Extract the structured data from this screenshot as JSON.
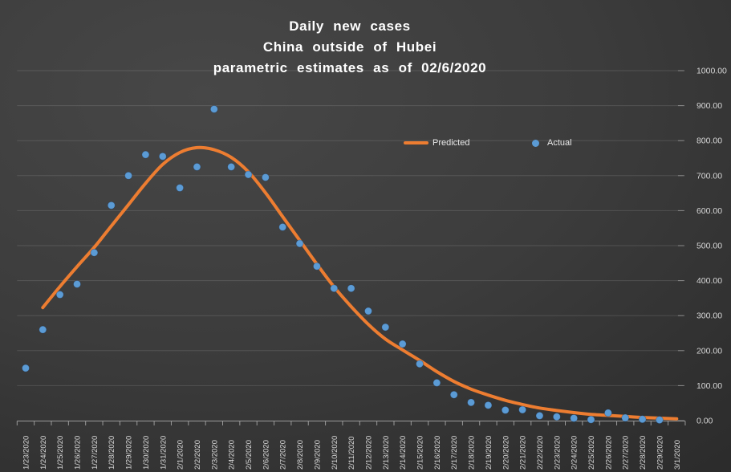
{
  "title": {
    "line1": "Daily new cases",
    "line2": "China outside of Hubei",
    "line3": "parametric estimates as of 02/6/2020"
  },
  "legend": {
    "predicted_label": "Predicted",
    "actual_label": "Actual"
  },
  "colors": {
    "predicted": "#ED7D31",
    "actual": "#5B9BD5",
    "grid": "rgba(255,255,255,0.13)",
    "axis": "#9a9a9a",
    "tick_label": "#d6d6d6",
    "title_text": "#ffffff",
    "legend_text": "#e9e9e9",
    "background_center": "#474747",
    "background_edge": "#232323"
  },
  "y_axis": {
    "min": 0,
    "max": 1000,
    "step": 100,
    "decimals": 2,
    "side": "right"
  },
  "chart_data": {
    "type": "line",
    "title": "Daily new cases\nChina outside of Hubei\nparametric estimates as of 02/6/2020",
    "xlabel": "",
    "ylabel": "",
    "ylim": [
      0,
      1000
    ],
    "grid": true,
    "legend_position": "top-center",
    "categories": [
      "1/23/2020",
      "1/24/2020",
      "1/25/2020",
      "1/26/2020",
      "1/27/2020",
      "1/28/2020",
      "1/29/2020",
      "1/30/2020",
      "1/31/2020",
      "2/1/2020",
      "2/2/2020",
      "2/3/2020",
      "2/4/2020",
      "2/5/2020",
      "2/6/2020",
      "2/7/2020",
      "2/8/2020",
      "2/9/2020",
      "2/10/2020",
      "2/11/2020",
      "2/12/2020",
      "2/13/2020",
      "2/14/2020",
      "2/15/2020",
      "2/16/2020",
      "2/17/2020",
      "2/18/2020",
      "2/19/2020",
      "2/20/2020",
      "2/21/2020",
      "2/22/2020",
      "2/23/2020",
      "2/24/2020",
      "2/25/2020",
      "2/26/2020",
      "2/27/2020",
      "2/28/2020",
      "2/29/2020",
      "3/1/2020"
    ],
    "series": [
      {
        "name": "Predicted",
        "render": "smooth-line",
        "color": "#ED7D31",
        "line_width": 4,
        "values": [
          null,
          323,
          383,
          440,
          495,
          556,
          617,
          678,
          732,
          766,
          780,
          774,
          752,
          711,
          651,
          583,
          515,
          447,
          382,
          326,
          275,
          233,
          202,
          172,
          140,
          112,
          90,
          73,
          58,
          46,
          36,
          29,
          23,
          18,
          15,
          12,
          9,
          7,
          5
        ]
      },
      {
        "name": "Actual",
        "render": "scatter",
        "color": "#5B9BD5",
        "marker_radius": 4.5,
        "values": [
          150,
          260,
          360,
          390,
          480,
          615,
          700,
          760,
          755,
          665,
          725,
          890,
          725,
          703,
          695,
          553,
          506,
          441,
          378,
          378,
          313,
          267,
          219,
          162,
          108,
          74,
          52,
          44,
          30,
          31,
          14,
          11,
          7,
          3,
          22,
          8,
          4,
          2,
          null
        ]
      }
    ]
  }
}
